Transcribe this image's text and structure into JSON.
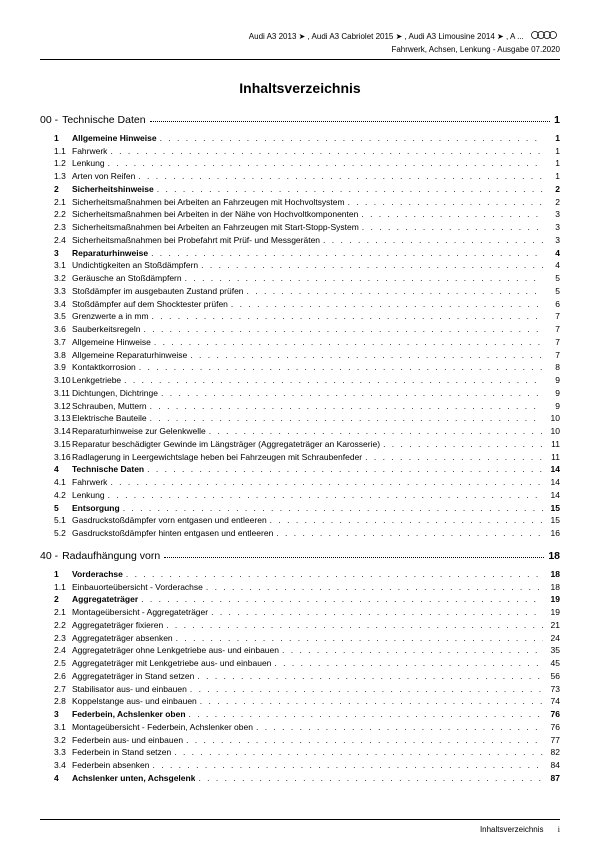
{
  "header": {
    "line1": "Audi A3 2013 ➤ , Audi A3 Cabriolet 2015 ➤ , Audi A3 Limousine 2014 ➤ , A ...",
    "line2": "Fahrwerk, Achsen, Lenkung - Ausgabe 07.2020"
  },
  "title": "Inhaltsverzeichnis",
  "footer": {
    "label": "Inhaltsverzeichnis",
    "page": "i"
  },
  "sections": [
    {
      "num": "00 -",
      "label": "Technische Daten",
      "page": "1",
      "entries": [
        {
          "num": "1",
          "label": "Allgemeine Hinweise",
          "page": "1",
          "bold": true
        },
        {
          "num": "1.1",
          "label": "Fahrwerk",
          "page": "1"
        },
        {
          "num": "1.2",
          "label": "Lenkung",
          "page": "1"
        },
        {
          "num": "1.3",
          "label": "Arten von Reifen",
          "page": "1"
        },
        {
          "num": "2",
          "label": "Sicherheitshinweise",
          "page": "2",
          "bold": true
        },
        {
          "num": "2.1",
          "label": "Sicherheitsmaßnahmen bei Arbeiten an Fahrzeugen mit Hochvoltsystem",
          "page": "2"
        },
        {
          "num": "2.2",
          "label": "Sicherheitsmaßnahmen bei Arbeiten in der Nähe von Hochvoltkomponenten",
          "page": "3"
        },
        {
          "num": "2.3",
          "label": "Sicherheitsmaßnahmen bei Arbeiten an Fahrzeugen mit Start-Stopp-System",
          "page": "3"
        },
        {
          "num": "2.4",
          "label": "Sicherheitsmaßnahmen bei Probefahrt mit Prüf- und Messgeräten",
          "page": "3"
        },
        {
          "num": "3",
          "label": "Reparaturhinweise",
          "page": "4",
          "bold": true
        },
        {
          "num": "3.1",
          "label": "Undichtigkeiten an Stoßdämpfern",
          "page": "4"
        },
        {
          "num": "3.2",
          "label": "Geräusche an Stoßdämpfern",
          "page": "5"
        },
        {
          "num": "3.3",
          "label": "Stoßdämpfer im ausgebauten Zustand prüfen",
          "page": "5"
        },
        {
          "num": "3.4",
          "label": "Stoßdämpfer auf dem Shocktester prüfen",
          "page": "6"
        },
        {
          "num": "3.5",
          "label": "Grenzwerte a in mm",
          "page": "7"
        },
        {
          "num": "3.6",
          "label": "Sauberkeitsregeln",
          "page": "7"
        },
        {
          "num": "3.7",
          "label": "Allgemeine Hinweise",
          "page": "7"
        },
        {
          "num": "3.8",
          "label": "Allgemeine Reparaturhinweise",
          "page": "7"
        },
        {
          "num": "3.9",
          "label": "Kontaktkorrosion",
          "page": "8"
        },
        {
          "num": "3.10",
          "label": "Lenkgetriebe",
          "page": "9"
        },
        {
          "num": "3.11",
          "label": "Dichtungen, Dichtringe",
          "page": "9"
        },
        {
          "num": "3.12",
          "label": "Schrauben, Muttern",
          "page": "9"
        },
        {
          "num": "3.13",
          "label": "Elektrische Bauteile",
          "page": "10"
        },
        {
          "num": "3.14",
          "label": "Reparaturhinweise zur Gelenkwelle",
          "page": "10"
        },
        {
          "num": "3.15",
          "label": "Reparatur beschädigter Gewinde im Längsträger (Aggregateträger an Karosserie)",
          "page": "11"
        },
        {
          "num": "3.16",
          "label": "Radlagerung in Leergewichtslage heben bei Fahrzeugen mit Schraubenfeder",
          "page": "11"
        },
        {
          "num": "4",
          "label": "Technische Daten",
          "page": "14",
          "bold": true
        },
        {
          "num": "4.1",
          "label": "Fahrwerk",
          "page": "14"
        },
        {
          "num": "4.2",
          "label": "Lenkung",
          "page": "14"
        },
        {
          "num": "5",
          "label": "Entsorgung",
          "page": "15",
          "bold": true
        },
        {
          "num": "5.1",
          "label": "Gasdruckstoßdämpfer vorn entgasen und entleeren",
          "page": "15"
        },
        {
          "num": "5.2",
          "label": "Gasdruckstoßdämpfer hinten entgasen und entleeren",
          "page": "16"
        }
      ]
    },
    {
      "num": "40 -",
      "label": "Radaufhängung vorn",
      "page": "18",
      "entries": [
        {
          "num": "1",
          "label": "Vorderachse",
          "page": "18",
          "bold": true
        },
        {
          "num": "1.1",
          "label": "Einbauorteübersicht - Vorderachse",
          "page": "18"
        },
        {
          "num": "2",
          "label": "Aggregateträger",
          "page": "19",
          "bold": true
        },
        {
          "num": "2.1",
          "label": "Montageübersicht - Aggregateträger",
          "page": "19"
        },
        {
          "num": "2.2",
          "label": "Aggregateträger fixieren",
          "page": "21"
        },
        {
          "num": "2.3",
          "label": "Aggregateträger absenken",
          "page": "24"
        },
        {
          "num": "2.4",
          "label": "Aggregateträger ohne Lenkgetriebe aus- und einbauen",
          "page": "35"
        },
        {
          "num": "2.5",
          "label": "Aggregateträger mit Lenkgetriebe aus- und einbauen",
          "page": "45"
        },
        {
          "num": "2.6",
          "label": "Aggregateträger in Stand setzen",
          "page": "56"
        },
        {
          "num": "2.7",
          "label": "Stabilisator aus- und einbauen",
          "page": "73"
        },
        {
          "num": "2.8",
          "label": "Koppelstange aus- und einbauen",
          "page": "74"
        },
        {
          "num": "3",
          "label": "Federbein, Achslenker oben",
          "page": "76",
          "bold": true
        },
        {
          "num": "3.1",
          "label": "Montageübersicht - Federbein, Achslenker oben",
          "page": "76"
        },
        {
          "num": "3.2",
          "label": "Federbein aus- und einbauen",
          "page": "77"
        },
        {
          "num": "3.3",
          "label": "Federbein in Stand setzen",
          "page": "82"
        },
        {
          "num": "3.4",
          "label": "Federbein absenken",
          "page": "84"
        },
        {
          "num": "4",
          "label": "Achslenker unten, Achsgelenk",
          "page": "87",
          "bold": true
        }
      ]
    }
  ],
  "style": {
    "body_font_size": 8.5,
    "title_font_size": 14,
    "section_font_size": 10.5,
    "text_color": "#000000",
    "background_color": "#ffffff"
  }
}
